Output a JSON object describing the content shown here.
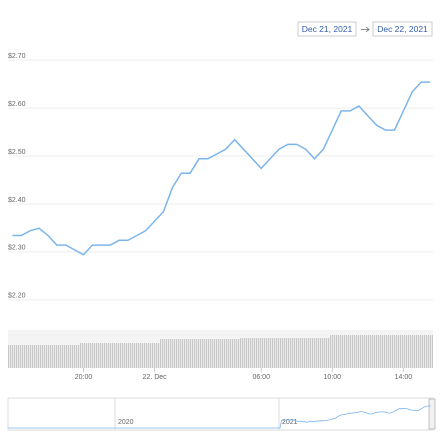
{
  "range": {
    "from": "Dec 21, 2021",
    "to": "Dec 22, 2021"
  },
  "chart_data": {
    "type": "line",
    "color": "#7cb5ec",
    "x": [
      "2021-12-21T16:00",
      "2021-12-21T16:30",
      "2021-12-21T17:00",
      "2021-12-21T17:30",
      "2021-12-21T18:00",
      "2021-12-21T18:30",
      "2021-12-21T19:00",
      "2021-12-21T19:30",
      "2021-12-21T20:00",
      "2021-12-21T20:30",
      "2021-12-21T21:00",
      "2021-12-21T21:30",
      "2021-12-21T22:00",
      "2021-12-21T22:30",
      "2021-12-21T23:00",
      "2021-12-21T23:30",
      "2021-12-22T00:00",
      "2021-12-22T00:30",
      "2021-12-22T01:00",
      "2021-12-22T01:30",
      "2021-12-22T02:00",
      "2021-12-22T02:30",
      "2021-12-22T03:00",
      "2021-12-22T03:30",
      "2021-12-22T04:00",
      "2021-12-22T04:30",
      "2021-12-22T05:00",
      "2021-12-22T05:30",
      "2021-12-22T06:00",
      "2021-12-22T06:30",
      "2021-12-22T07:00",
      "2021-12-22T07:30",
      "2021-12-22T08:00",
      "2021-12-22T08:30",
      "2021-12-22T09:00",
      "2021-12-22T09:30",
      "2021-12-22T10:00",
      "2021-12-22T10:30",
      "2021-12-22T11:00",
      "2021-12-22T11:30",
      "2021-12-22T12:00",
      "2021-12-22T12:30",
      "2021-12-22T13:00",
      "2021-12-22T13:30",
      "2021-12-22T14:00",
      "2021-12-22T14:30",
      "2021-12-22T15:00",
      "2021-12-22T15:30"
    ],
    "values": [
      2.33,
      2.33,
      2.34,
      2.345,
      2.33,
      2.31,
      2.31,
      2.3,
      2.29,
      2.31,
      2.31,
      2.31,
      2.32,
      2.32,
      2.33,
      2.34,
      2.36,
      2.38,
      2.43,
      2.46,
      2.46,
      2.49,
      2.49,
      2.5,
      2.51,
      2.53,
      2.51,
      2.49,
      2.47,
      2.49,
      2.51,
      2.52,
      2.52,
      2.51,
      2.49,
      2.51,
      2.55,
      2.59,
      2.59,
      2.6,
      2.58,
      2.56,
      2.55,
      2.55,
      2.59,
      2.63,
      2.65,
      2.65
    ],
    "xlim": [
      "2021-12-21T15:45",
      "2021-12-22T15:40"
    ],
    "xticks": [
      {
        "value": "2021-12-21T20:00",
        "label": "20:00"
      },
      {
        "value": "2021-12-22T00:00",
        "label": "22. Dec"
      },
      {
        "value": "2021-12-22T06:00",
        "label": "06:00"
      },
      {
        "value": "2021-12-22T10:00",
        "label": "10:00"
      },
      {
        "value": "2021-12-22T14:00",
        "label": "14:00"
      }
    ],
    "ylim": [
      2.16,
      2.74
    ],
    "yticks": [
      {
        "value": 2.2,
        "label": "$2.20"
      },
      {
        "value": 2.3,
        "label": "$2.30"
      },
      {
        "value": 2.4,
        "label": "$2.40"
      },
      {
        "value": 2.5,
        "label": "$2.50"
      },
      {
        "value": 2.6,
        "label": "$2.60"
      },
      {
        "value": 2.7,
        "label": "$2.70"
      }
    ],
    "grid": true,
    "navigator": {
      "labels": [
        "2020",
        "2021"
      ]
    }
  }
}
